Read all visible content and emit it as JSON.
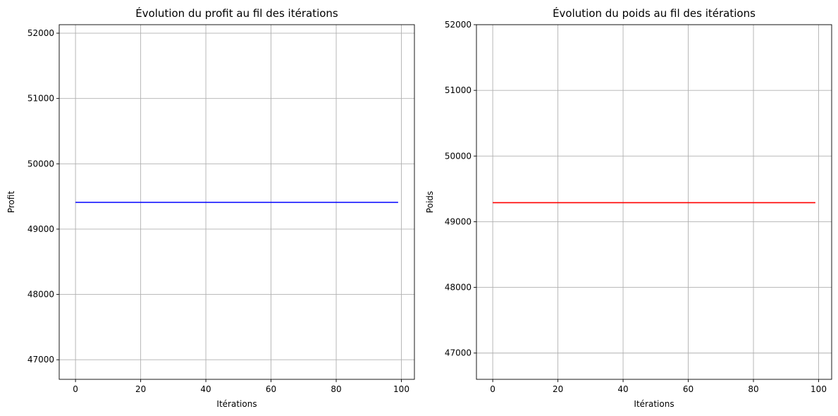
{
  "chart_data": [
    {
      "type": "line",
      "title": "Évolution du profit au fil des itérations",
      "xlabel": "Itérations",
      "ylabel": "Profit",
      "xlim": [
        -5,
        104
      ],
      "ylim": [
        46700,
        52130
      ],
      "xticks": [
        0,
        20,
        40,
        60,
        80,
        100
      ],
      "yticks": [
        47000,
        48000,
        49000,
        50000,
        51000,
        52000
      ],
      "grid": true,
      "series": [
        {
          "color": "#0000ff",
          "x": [
            0,
            99
          ],
          "y": [
            49410,
            49410
          ]
        }
      ]
    },
    {
      "type": "line",
      "title": "Évolution du poids au fil des itérations",
      "xlabel": "Itérations",
      "ylabel": "Poids",
      "xlim": [
        -5,
        104
      ],
      "ylim": [
        46600,
        52000
      ],
      "xticks": [
        0,
        20,
        40,
        60,
        80,
        100
      ],
      "yticks": [
        47000,
        48000,
        49000,
        50000,
        51000,
        52000
      ],
      "grid": true,
      "series": [
        {
          "color": "#ff0000",
          "x": [
            0,
            99
          ],
          "y": [
            49290,
            49290
          ]
        }
      ]
    }
  ]
}
